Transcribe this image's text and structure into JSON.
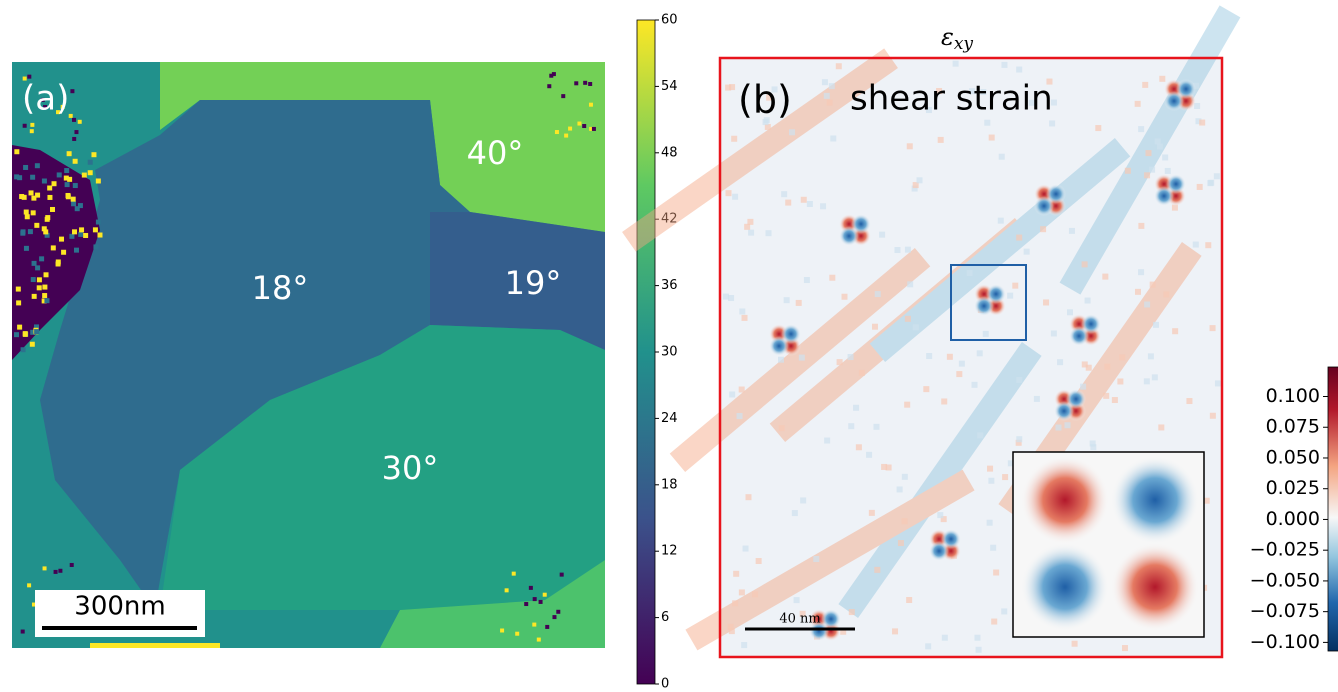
{
  "panel_a": {
    "label": "(a)",
    "annotations": [
      "40°",
      "18°",
      "19°",
      "30°"
    ],
    "scale_bar": "300nm",
    "colorbar": {
      "lim": [
        0,
        60
      ],
      "ticks": [
        0,
        6,
        12,
        18,
        24,
        30,
        36,
        42,
        48,
        54,
        60
      ]
    }
  },
  "panel_b": {
    "title": {
      "symbol": "ε",
      "subscript": "xy"
    },
    "label": "(b)",
    "text": "shear strain",
    "scale_bar": "40 nm",
    "colorbar": {
      "lim": [
        -0.107,
        0.124
      ],
      "ticks": [
        {
          "value": 0.1,
          "label": "0.100"
        },
        {
          "value": 0.075,
          "label": "0.075"
        },
        {
          "value": 0.05,
          "label": "0.050"
        },
        {
          "value": 0.025,
          "label": "0.025"
        },
        {
          "value": 0,
          "label": "0.000"
        },
        {
          "value": -0.025,
          "label": "−0.025"
        },
        {
          "value": -0.05,
          "label": "−0.050"
        },
        {
          "value": -0.075,
          "label": "−0.075"
        },
        {
          "value": -0.1,
          "label": "−0.100"
        }
      ]
    }
  }
}
